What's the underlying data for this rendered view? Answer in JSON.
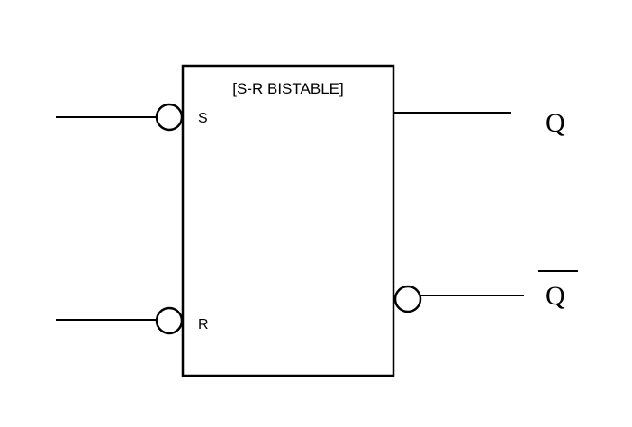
{
  "diagram": {
    "title": "[S-R BISTABLE]",
    "inputs": {
      "s_label": "S",
      "r_label": "R"
    },
    "outputs": {
      "q_label": "Q",
      "q_bar_label": "Q"
    },
    "colors": {
      "stroke": "#000000",
      "background": "#ffffff"
    }
  }
}
